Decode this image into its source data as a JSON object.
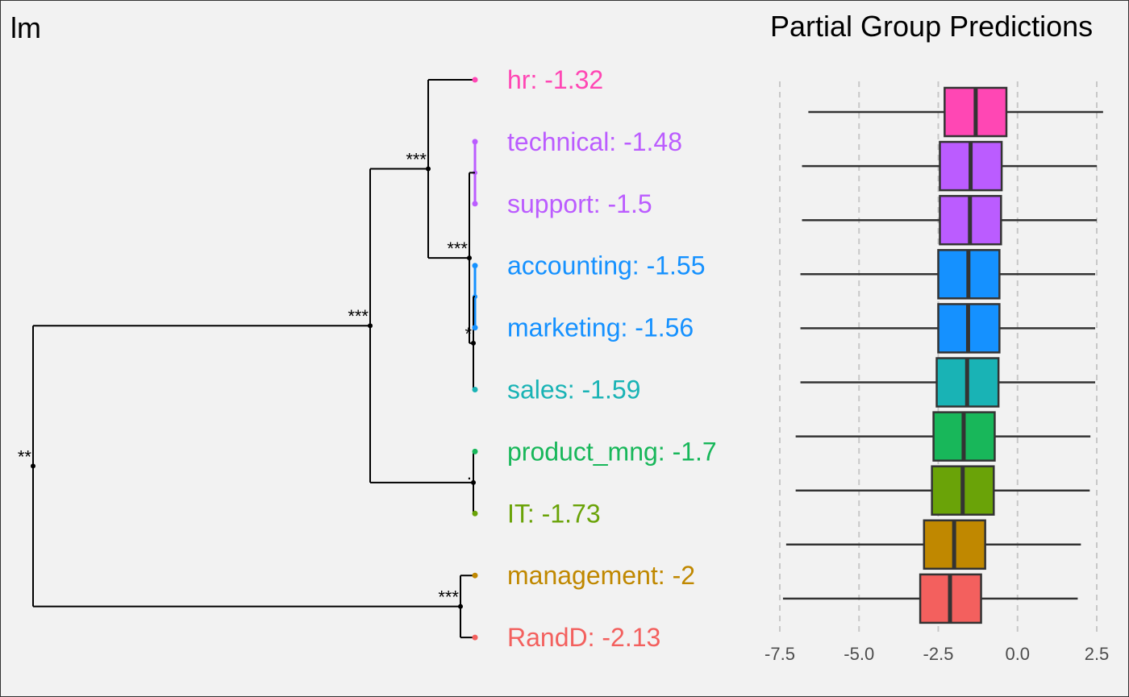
{
  "left_title": "lm",
  "right_title": "Partial Group Predictions",
  "chart_data": {
    "type": "boxplot",
    "title": "Partial Group Predictions",
    "xlim": [
      -7.5,
      2.5
    ],
    "xticks": [
      -7.5,
      -5.0,
      -2.5,
      0.0,
      2.5
    ],
    "xtick_labels": [
      "-7.5",
      "-5.0",
      "-2.5",
      "0.0",
      "2.5"
    ],
    "grid": "vertical dashed",
    "groups": [
      {
        "name": "hr",
        "label": "hr: -1.32",
        "color": "#FF47B4",
        "box": {
          "min": -6.6,
          "q1": -2.3,
          "median": -1.32,
          "q3": -0.35,
          "max": 2.7
        }
      },
      {
        "name": "technical",
        "label": "technical: -1.48",
        "color": "#BB5CFF",
        "box": {
          "min": -6.8,
          "q1": -2.45,
          "median": -1.48,
          "q3": -0.5,
          "max": 2.5
        }
      },
      {
        "name": "support",
        "label": "support: -1.5",
        "color": "#BB5CFF",
        "box": {
          "min": -6.8,
          "q1": -2.45,
          "median": -1.5,
          "q3": -0.52,
          "max": 2.5
        }
      },
      {
        "name": "accounting",
        "label": "accounting: -1.55",
        "color": "#1591FF",
        "box": {
          "min": -6.85,
          "q1": -2.5,
          "median": -1.55,
          "q3": -0.57,
          "max": 2.45
        }
      },
      {
        "name": "marketing",
        "label": "marketing: -1.56",
        "color": "#1591FF",
        "box": {
          "min": -6.85,
          "q1": -2.5,
          "median": -1.56,
          "q3": -0.57,
          "max": 2.45
        }
      },
      {
        "name": "sales",
        "label": "sales: -1.59",
        "color": "#19B3B5",
        "box": {
          "min": -6.85,
          "q1": -2.55,
          "median": -1.59,
          "q3": -0.6,
          "max": 2.45
        }
      },
      {
        "name": "product_mng",
        "label": "product_mng: -1.7",
        "color": "#18B75A",
        "box": {
          "min": -7.0,
          "q1": -2.65,
          "median": -1.7,
          "q3": -0.72,
          "max": 2.3
        }
      },
      {
        "name": "IT",
        "label": "IT: -1.73",
        "color": "#6AA308",
        "box": {
          "min": -7.0,
          "q1": -2.7,
          "median": -1.73,
          "q3": -0.75,
          "max": 2.28
        }
      },
      {
        "name": "management",
        "label": "management: -2",
        "color": "#C08800",
        "box": {
          "min": -7.3,
          "q1": -2.95,
          "median": -2.0,
          "q3": -1.02,
          "max": 2.0
        }
      },
      {
        "name": "RandD",
        "label": "RandD: -2.13",
        "color": "#F3605E",
        "box": {
          "min": -7.4,
          "q1": -3.07,
          "median": -2.13,
          "q3": -1.15,
          "max": 1.9
        }
      }
    ],
    "dendrogram": {
      "merges": [
        {
          "id": "support_tech",
          "children": [
            "support",
            "technical"
          ],
          "significance": ""
        },
        {
          "id": "acc_mkt",
          "children": [
            "accounting",
            "marketing"
          ],
          "significance": ""
        },
        {
          "id": "acc_mkt_sales",
          "children": [
            "acc_mkt",
            "sales"
          ],
          "significance": "*"
        },
        {
          "id": "st_ams",
          "children": [
            "support_tech",
            "acc_mkt_sales"
          ],
          "significance": "***"
        },
        {
          "id": "hr_rest",
          "children": [
            "hr",
            "st_ams"
          ],
          "significance": "***"
        },
        {
          "id": "pm_it",
          "children": [
            "product_mng",
            "IT"
          ],
          "significance": "."
        },
        {
          "id": "upper",
          "children": [
            "hr_rest",
            "pm_it"
          ],
          "significance": "***"
        },
        {
          "id": "mgmt_randd",
          "children": [
            "management",
            "RandD"
          ],
          "significance": "***"
        },
        {
          "id": "root",
          "children": [
            "upper",
            "mgmt_randd"
          ],
          "significance": "**"
        }
      ]
    }
  }
}
